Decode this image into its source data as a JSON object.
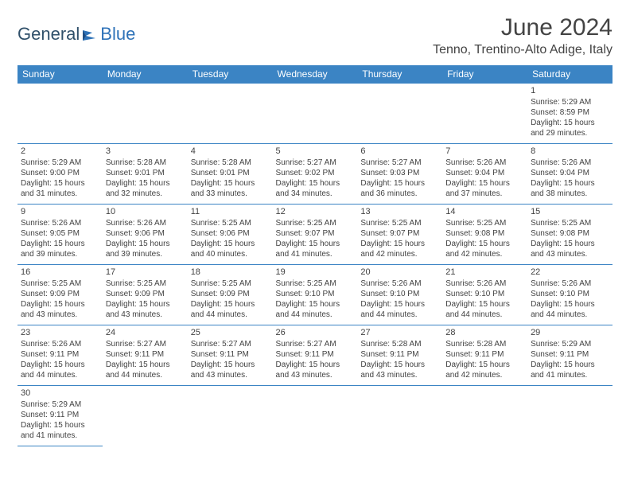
{
  "logo": {
    "general": "General",
    "blue": "Blue"
  },
  "title": "June 2024",
  "location": "Tenno, Trentino-Alto Adige, Italy",
  "colors": {
    "header_bg": "#3b84c4",
    "header_text": "#ffffff",
    "cell_border": "#3b84c4",
    "text": "#424242",
    "logo_general": "#30506a",
    "logo_blue": "#2e72b8",
    "background": "#ffffff"
  },
  "weekdays": [
    "Sunday",
    "Monday",
    "Tuesday",
    "Wednesday",
    "Thursday",
    "Friday",
    "Saturday"
  ],
  "weeks": [
    [
      null,
      null,
      null,
      null,
      null,
      null,
      {
        "n": "1",
        "sunrise": "Sunrise: 5:29 AM",
        "sunset": "Sunset: 8:59 PM",
        "day1": "Daylight: 15 hours",
        "day2": "and 29 minutes."
      }
    ],
    [
      {
        "n": "2",
        "sunrise": "Sunrise: 5:29 AM",
        "sunset": "Sunset: 9:00 PM",
        "day1": "Daylight: 15 hours",
        "day2": "and 31 minutes."
      },
      {
        "n": "3",
        "sunrise": "Sunrise: 5:28 AM",
        "sunset": "Sunset: 9:01 PM",
        "day1": "Daylight: 15 hours",
        "day2": "and 32 minutes."
      },
      {
        "n": "4",
        "sunrise": "Sunrise: 5:28 AM",
        "sunset": "Sunset: 9:01 PM",
        "day1": "Daylight: 15 hours",
        "day2": "and 33 minutes."
      },
      {
        "n": "5",
        "sunrise": "Sunrise: 5:27 AM",
        "sunset": "Sunset: 9:02 PM",
        "day1": "Daylight: 15 hours",
        "day2": "and 34 minutes."
      },
      {
        "n": "6",
        "sunrise": "Sunrise: 5:27 AM",
        "sunset": "Sunset: 9:03 PM",
        "day1": "Daylight: 15 hours",
        "day2": "and 36 minutes."
      },
      {
        "n": "7",
        "sunrise": "Sunrise: 5:26 AM",
        "sunset": "Sunset: 9:04 PM",
        "day1": "Daylight: 15 hours",
        "day2": "and 37 minutes."
      },
      {
        "n": "8",
        "sunrise": "Sunrise: 5:26 AM",
        "sunset": "Sunset: 9:04 PM",
        "day1": "Daylight: 15 hours",
        "day2": "and 38 minutes."
      }
    ],
    [
      {
        "n": "9",
        "sunrise": "Sunrise: 5:26 AM",
        "sunset": "Sunset: 9:05 PM",
        "day1": "Daylight: 15 hours",
        "day2": "and 39 minutes."
      },
      {
        "n": "10",
        "sunrise": "Sunrise: 5:26 AM",
        "sunset": "Sunset: 9:06 PM",
        "day1": "Daylight: 15 hours",
        "day2": "and 39 minutes."
      },
      {
        "n": "11",
        "sunrise": "Sunrise: 5:25 AM",
        "sunset": "Sunset: 9:06 PM",
        "day1": "Daylight: 15 hours",
        "day2": "and 40 minutes."
      },
      {
        "n": "12",
        "sunrise": "Sunrise: 5:25 AM",
        "sunset": "Sunset: 9:07 PM",
        "day1": "Daylight: 15 hours",
        "day2": "and 41 minutes."
      },
      {
        "n": "13",
        "sunrise": "Sunrise: 5:25 AM",
        "sunset": "Sunset: 9:07 PM",
        "day1": "Daylight: 15 hours",
        "day2": "and 42 minutes."
      },
      {
        "n": "14",
        "sunrise": "Sunrise: 5:25 AM",
        "sunset": "Sunset: 9:08 PM",
        "day1": "Daylight: 15 hours",
        "day2": "and 42 minutes."
      },
      {
        "n": "15",
        "sunrise": "Sunrise: 5:25 AM",
        "sunset": "Sunset: 9:08 PM",
        "day1": "Daylight: 15 hours",
        "day2": "and 43 minutes."
      }
    ],
    [
      {
        "n": "16",
        "sunrise": "Sunrise: 5:25 AM",
        "sunset": "Sunset: 9:09 PM",
        "day1": "Daylight: 15 hours",
        "day2": "and 43 minutes."
      },
      {
        "n": "17",
        "sunrise": "Sunrise: 5:25 AM",
        "sunset": "Sunset: 9:09 PM",
        "day1": "Daylight: 15 hours",
        "day2": "and 43 minutes."
      },
      {
        "n": "18",
        "sunrise": "Sunrise: 5:25 AM",
        "sunset": "Sunset: 9:09 PM",
        "day1": "Daylight: 15 hours",
        "day2": "and 44 minutes."
      },
      {
        "n": "19",
        "sunrise": "Sunrise: 5:25 AM",
        "sunset": "Sunset: 9:10 PM",
        "day1": "Daylight: 15 hours",
        "day2": "and 44 minutes."
      },
      {
        "n": "20",
        "sunrise": "Sunrise: 5:26 AM",
        "sunset": "Sunset: 9:10 PM",
        "day1": "Daylight: 15 hours",
        "day2": "and 44 minutes."
      },
      {
        "n": "21",
        "sunrise": "Sunrise: 5:26 AM",
        "sunset": "Sunset: 9:10 PM",
        "day1": "Daylight: 15 hours",
        "day2": "and 44 minutes."
      },
      {
        "n": "22",
        "sunrise": "Sunrise: 5:26 AM",
        "sunset": "Sunset: 9:10 PM",
        "day1": "Daylight: 15 hours",
        "day2": "and 44 minutes."
      }
    ],
    [
      {
        "n": "23",
        "sunrise": "Sunrise: 5:26 AM",
        "sunset": "Sunset: 9:11 PM",
        "day1": "Daylight: 15 hours",
        "day2": "and 44 minutes."
      },
      {
        "n": "24",
        "sunrise": "Sunrise: 5:27 AM",
        "sunset": "Sunset: 9:11 PM",
        "day1": "Daylight: 15 hours",
        "day2": "and 44 minutes."
      },
      {
        "n": "25",
        "sunrise": "Sunrise: 5:27 AM",
        "sunset": "Sunset: 9:11 PM",
        "day1": "Daylight: 15 hours",
        "day2": "and 43 minutes."
      },
      {
        "n": "26",
        "sunrise": "Sunrise: 5:27 AM",
        "sunset": "Sunset: 9:11 PM",
        "day1": "Daylight: 15 hours",
        "day2": "and 43 minutes."
      },
      {
        "n": "27",
        "sunrise": "Sunrise: 5:28 AM",
        "sunset": "Sunset: 9:11 PM",
        "day1": "Daylight: 15 hours",
        "day2": "and 43 minutes."
      },
      {
        "n": "28",
        "sunrise": "Sunrise: 5:28 AM",
        "sunset": "Sunset: 9:11 PM",
        "day1": "Daylight: 15 hours",
        "day2": "and 42 minutes."
      },
      {
        "n": "29",
        "sunrise": "Sunrise: 5:29 AM",
        "sunset": "Sunset: 9:11 PM",
        "day1": "Daylight: 15 hours",
        "day2": "and 41 minutes."
      }
    ],
    [
      {
        "n": "30",
        "sunrise": "Sunrise: 5:29 AM",
        "sunset": "Sunset: 9:11 PM",
        "day1": "Daylight: 15 hours",
        "day2": "and 41 minutes."
      },
      null,
      null,
      null,
      null,
      null,
      null
    ]
  ]
}
